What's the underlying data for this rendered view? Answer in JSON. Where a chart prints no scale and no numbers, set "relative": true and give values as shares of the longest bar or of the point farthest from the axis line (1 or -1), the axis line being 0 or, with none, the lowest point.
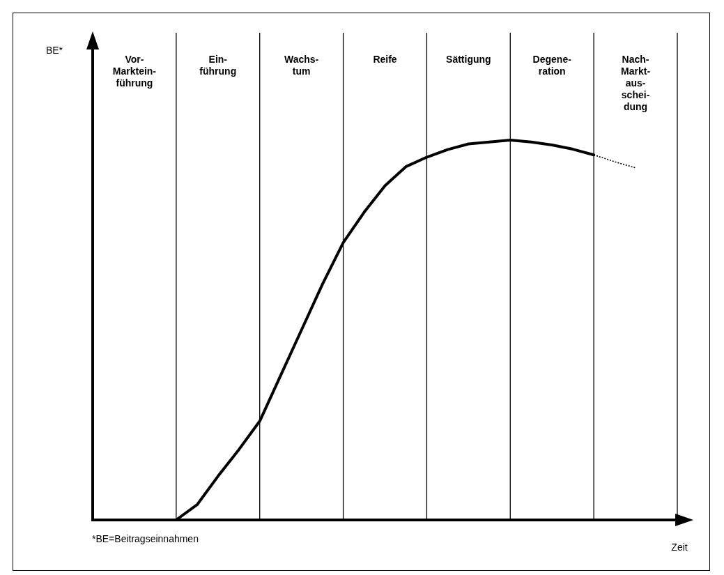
{
  "chart_data": {
    "type": "line",
    "relative": true,
    "grid": "x",
    "ylabel": "BE*",
    "xlabel": "Zeit",
    "categories": [
      null,
      null,
      "Vor-\nMarktein-\nführung",
      null,
      null,
      null,
      "Ein-\nführung",
      null,
      null,
      null,
      "Wachs-\ntum",
      null,
      null,
      null,
      "Reife",
      null,
      null,
      null,
      "Sättigung",
      null,
      null,
      null,
      "Degene-\nration",
      null,
      null,
      null,
      "Nach-\nMarkt-\naus-\nschei-\ndung",
      null,
      null
    ],
    "series": [
      {
        "color": "#000000",
        "line_style": "solid",
        "values": [
          null,
          null,
          null,
          null,
          0,
          0.04,
          0.115,
          0.185,
          0.26,
          0.38,
          0.5,
          0.62,
          0.73,
          0.81,
          0.88,
          0.93,
          0.955,
          0.975,
          0.99,
          0.995,
          1,
          0.995,
          0.987,
          0.976,
          0.961,
          null,
          null,
          null,
          null
        ]
      },
      {
        "color": "#000000",
        "line_style": "dotted",
        "values": [
          null,
          null,
          null,
          null,
          null,
          null,
          null,
          null,
          null,
          null,
          null,
          null,
          null,
          null,
          null,
          null,
          null,
          null,
          null,
          null,
          null,
          null,
          null,
          null,
          0.961,
          0.943,
          0.927,
          null,
          null
        ]
      }
    ],
    "annotations": [
      "*BE=Beitragseinnahmen"
    ]
  }
}
